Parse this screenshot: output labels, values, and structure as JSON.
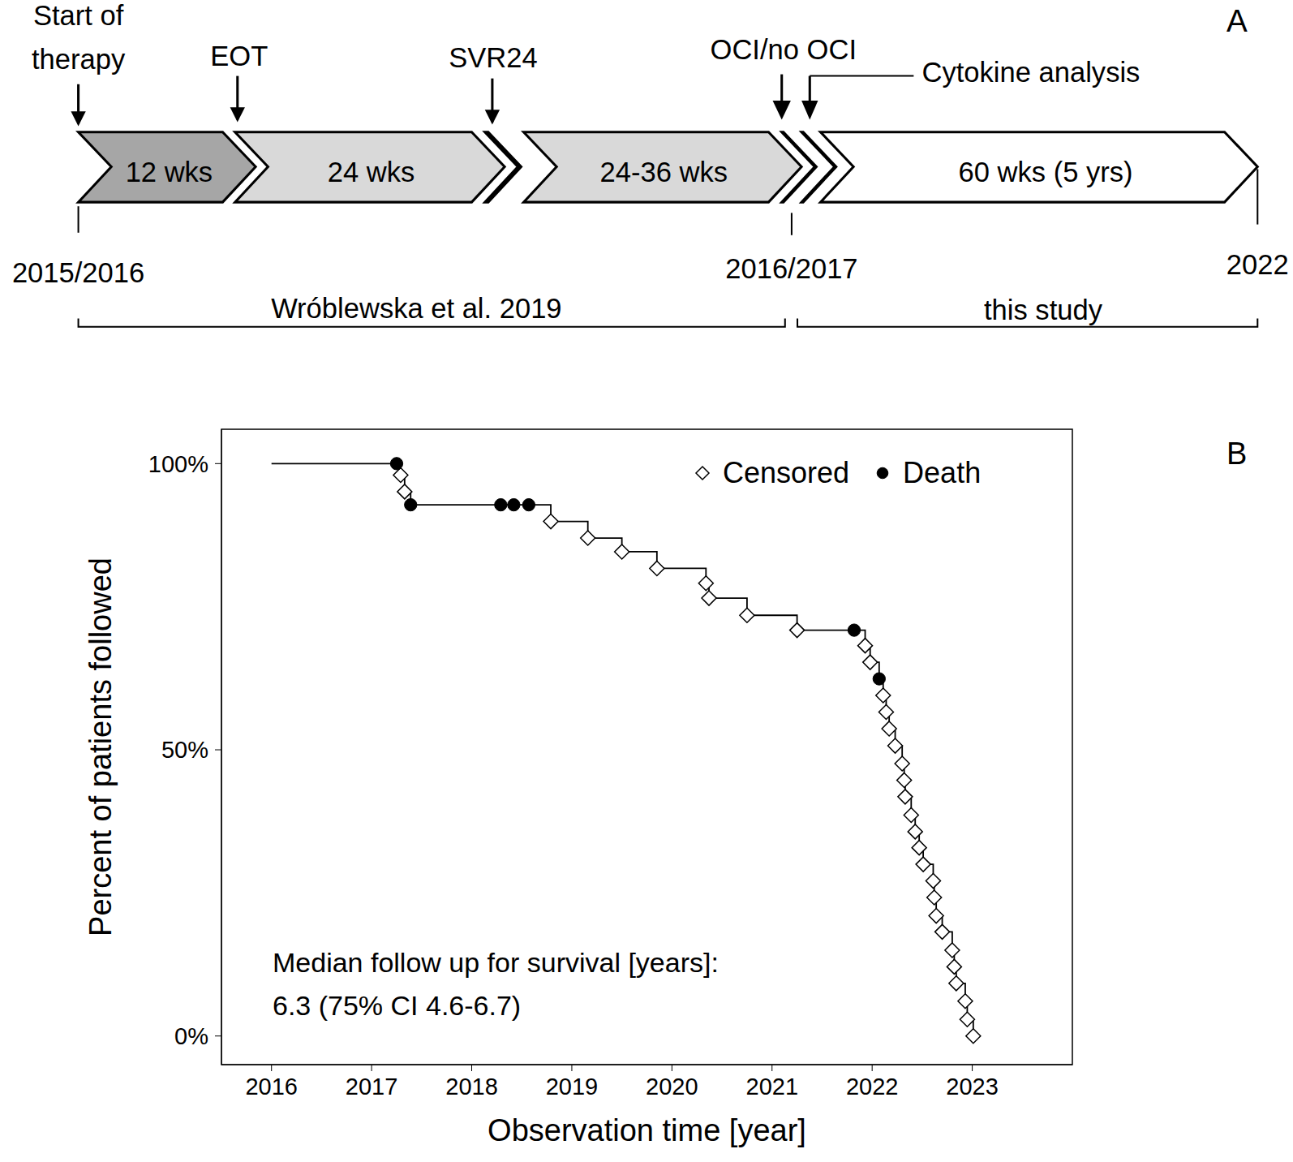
{
  "timeline": {
    "panel_label": "A",
    "events": [
      {
        "label": [
          "Start of",
          "therapy"
        ]
      },
      {
        "label": [
          "EOT"
        ]
      },
      {
        "label": [
          "SVR24"
        ]
      },
      {
        "label": [
          "OCI/no OCI"
        ]
      },
      {
        "label": [
          "Cytokine analysis"
        ]
      }
    ],
    "segments": [
      "12 wks",
      "24 wks",
      "24-36 wks",
      "60 wks (5 yrs)"
    ],
    "dates": [
      "2015/2016",
      "2016/2017",
      "2022"
    ],
    "spans": [
      "Wróblewska et al. 2019",
      "this study"
    ]
  },
  "chart_data": {
    "type": "line",
    "panel_label": "B",
    "x_label": "Observation time [year]",
    "y_label": "Percent of patients followed",
    "annotations": [
      "Median follow up for survival [years]:",
      "6.3 (75% CI 4.6-6.7)"
    ],
    "xlim": [
      2015.5,
      2024
    ],
    "xticks": [
      2016,
      2017,
      2018,
      2019,
      2020,
      2021,
      2022,
      2023
    ],
    "ylim": [
      -5,
      106
    ],
    "yticks": [
      {
        "value": 0,
        "label": "0%"
      },
      {
        "value": 50,
        "label": "50%"
      },
      {
        "value": 100,
        "label": "100%"
      }
    ],
    "legend": "upper right",
    "line_style": "step",
    "color": "#000000",
    "series": [
      {
        "name": "Censored",
        "marker": "diamond",
        "color": "#ffffff"
      },
      {
        "name": "Death",
        "marker": "circle",
        "color": "#000000"
      }
    ],
    "x": [
      2016,
      2017.25,
      2017.29,
      2017.33,
      2017.39,
      2018.29,
      2018.42,
      2018.57,
      2018.79,
      2019.16,
      2019.5,
      2019.85,
      2020.34,
      2020.37,
      2020.75,
      2021.25,
      2021.82,
      2021.93,
      2021.98,
      2022.07,
      2022.11,
      2022.14,
      2022.17,
      2022.23,
      2022.3,
      2022.32,
      2022.33,
      2022.39,
      2022.43,
      2022.47,
      2022.51,
      2022.61,
      2022.62,
      2022.64,
      2022.7,
      2022.8,
      2022.82,
      2022.84,
      2022.93,
      2022.95,
      2023.01
    ],
    "values": [
      100,
      100,
      98.0,
      95.1,
      92.8,
      92.8,
      92.8,
      92.8,
      89.9,
      87.0,
      84.6,
      81.7,
      79.1,
      76.5,
      73.5,
      70.9,
      70.9,
      68.2,
      65.3,
      62.4,
      59.5,
      56.6,
      53.7,
      50.7,
      47.6,
      44.7,
      41.8,
      38.6,
      35.7,
      32.9,
      30.0,
      27.1,
      24.2,
      21.0,
      18.2,
      15.0,
      12.1,
      9.2,
      6.1,
      2.9,
      0
    ],
    "status": [
      null,
      "Death",
      "Censored",
      "Censored",
      "Death",
      "Death",
      "Death",
      "Death",
      "Censored",
      "Censored",
      "Censored",
      "Censored",
      "Censored",
      "Censored",
      "Censored",
      "Censored",
      "Death",
      "Censored",
      "Censored",
      "Death",
      "Censored",
      "Censored",
      "Censored",
      "Censored",
      "Censored",
      "Censored",
      "Censored",
      "Censored",
      "Censored",
      "Censored",
      "Censored",
      "Censored",
      "Censored",
      "Censored",
      "Censored",
      "Censored",
      "Censored",
      "Censored",
      "Censored",
      "Censored",
      "Censored"
    ]
  }
}
